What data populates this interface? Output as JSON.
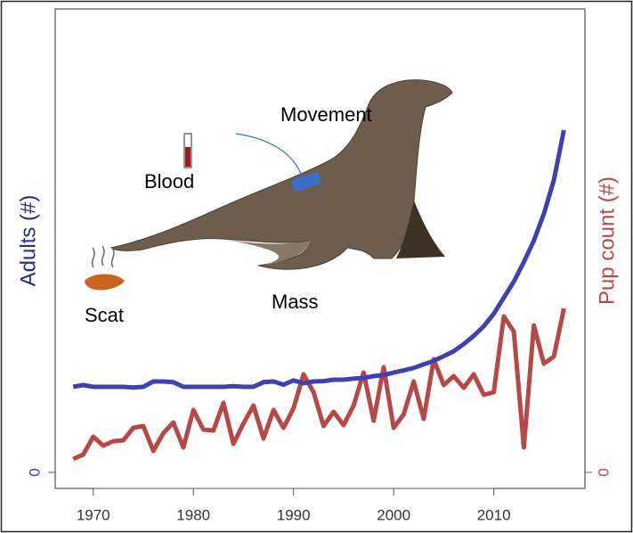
{
  "chart_data": {
    "type": "line",
    "x": [
      1968,
      1969,
      1970,
      1971,
      1972,
      1973,
      1974,
      1975,
      1976,
      1977,
      1978,
      1979,
      1980,
      1981,
      1982,
      1983,
      1984,
      1985,
      1986,
      1987,
      1988,
      1989,
      1990,
      1991,
      1992,
      1993,
      1994,
      1995,
      1996,
      1997,
      1998,
      1999,
      2000,
      2001,
      2002,
      2003,
      2004,
      2005,
      2006,
      2007,
      2008,
      2009,
      2010,
      2011,
      2012,
      2013,
      2014,
      2015,
      2016,
      2017
    ],
    "series": [
      {
        "color": "#4040b0",
        "axis": "y",
        "values": [
          24,
          24.5,
          24,
          24,
          24,
          24,
          23.8,
          24,
          25.5,
          25.5,
          25.3,
          24,
          24,
          24,
          24,
          24,
          24.2,
          24,
          24,
          25.3,
          25.5,
          24.6,
          25.8,
          25,
          25.5,
          25.6,
          26,
          26,
          26.3,
          26.5,
          27,
          27.3,
          28,
          28.6,
          29.3,
          30.3,
          31.3,
          32.6,
          34,
          36,
          38.3,
          41,
          44.5,
          49,
          53.5,
          59,
          65,
          72.5,
          82,
          96
        ]
      },
      {
        "color": "#b84848",
        "axis": "y2",
        "values": [
          3.75,
          5,
          10,
          7.5,
          8.75,
          9,
          12.5,
          13,
          6,
          11,
          14,
          7,
          17.5,
          12,
          11.75,
          19.5,
          8,
          13.75,
          18.75,
          9.5,
          17.5,
          12.5,
          18,
          27.5,
          22.5,
          13,
          17,
          13.25,
          18.75,
          28,
          14.5,
          29.5,
          12.5,
          16.25,
          25.5,
          15,
          31.75,
          24.5,
          27,
          23.75,
          27.5,
          21.75,
          22.5,
          43.75,
          39.5,
          7,
          41.25,
          30.5,
          32.5,
          46
        ]
      }
    ],
    "y_label": "Adults (#)",
    "y2_label": "Pup count (#)",
    "xlim": [
      1966.2,
      2019.1
    ],
    "xticks": [
      1970,
      1980,
      1990,
      2000,
      2010
    ],
    "ylim": [
      -4.5,
      130
    ],
    "yticks": [
      0
    ],
    "y2lim": [
      -4.5,
      130
    ],
    "y2ticks": [
      0
    ],
    "annotations": [
      "Movement",
      "Blood",
      "Scat",
      "Mass"
    ]
  }
}
